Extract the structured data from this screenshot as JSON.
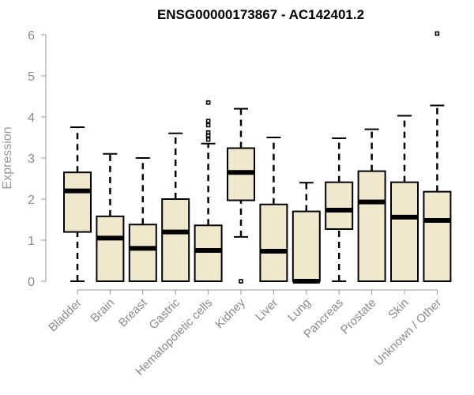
{
  "chart_data": {
    "type": "box",
    "title": "ENSG00000173867 - AC142401.2",
    "ylabel": "Expression",
    "xlabel": "",
    "ylim": [
      0,
      6
    ],
    "yticks": [
      "0",
      "1",
      "2",
      "3",
      "4",
      "5",
      "6"
    ],
    "grid": false,
    "box_color": "#efe8cd",
    "categories": [
      "Bladder",
      "Brain",
      "Breast",
      "Gastric",
      "Hematopoietic cells",
      "Kidney",
      "Liver",
      "Lung",
      "Pancreas",
      "Prostate",
      "Skin",
      "Unknown / Other"
    ],
    "boxes": [
      {
        "min": 0.0,
        "q1": 1.2,
        "median": 2.2,
        "q3": 2.65,
        "max": 3.75,
        "outliers": []
      },
      {
        "min": 0.0,
        "q1": 0.0,
        "median": 1.05,
        "q3": 1.58,
        "max": 3.1,
        "outliers": []
      },
      {
        "min": 0.0,
        "q1": 0.0,
        "median": 0.8,
        "q3": 1.38,
        "max": 3.0,
        "outliers": []
      },
      {
        "min": 0.0,
        "q1": 0.0,
        "median": 1.2,
        "q3": 2.0,
        "max": 3.6,
        "outliers": []
      },
      {
        "min": 0.0,
        "q1": 0.0,
        "median": 0.75,
        "q3": 1.36,
        "max": 3.35,
        "outliers": [
          3.45,
          3.55,
          3.62,
          3.8,
          3.9,
          4.35
        ]
      },
      {
        "min": 1.08,
        "q1": 1.97,
        "median": 2.65,
        "q3": 3.24,
        "max": 4.2,
        "outliers": [
          0.0
        ]
      },
      {
        "min": 0.0,
        "q1": 0.0,
        "median": 0.73,
        "q3": 1.87,
        "max": 3.5,
        "outliers": []
      },
      {
        "min": 0.0,
        "q1": 0.0,
        "median": 0.0,
        "q3": 1.7,
        "max": 2.4,
        "outliers": []
      },
      {
        "min": 0.0,
        "q1": 1.27,
        "median": 1.73,
        "q3": 2.41,
        "max": 3.48,
        "outliers": []
      },
      {
        "min": 0.0,
        "q1": 0.0,
        "median": 1.93,
        "q3": 2.68,
        "max": 3.7,
        "outliers": []
      },
      {
        "min": 0.0,
        "q1": 0.0,
        "median": 1.56,
        "q3": 2.41,
        "max": 4.03,
        "outliers": []
      },
      {
        "min": 0.0,
        "q1": 0.0,
        "median": 1.48,
        "q3": 2.18,
        "max": 4.28,
        "outliers": [
          6.03
        ]
      }
    ]
  }
}
